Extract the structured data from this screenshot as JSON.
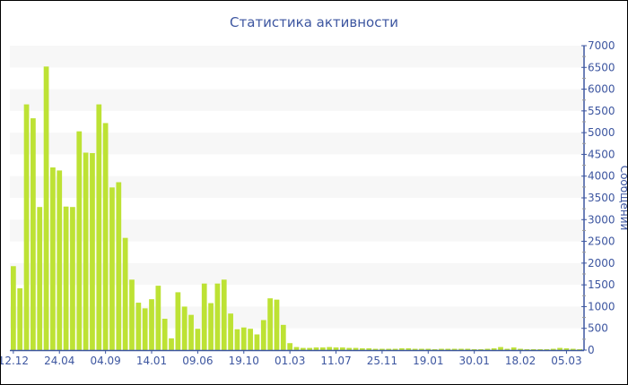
{
  "chart_data": {
    "type": "bar",
    "title": "Статистика активности",
    "ylabel": "Сообщений",
    "xlabel": "",
    "ylim": [
      0,
      7000
    ],
    "y_ticks": [
      0,
      500,
      1000,
      1500,
      2000,
      2500,
      3000,
      3500,
      4000,
      4500,
      5000,
      5500,
      6000,
      6500,
      7000
    ],
    "y_axis_side": "right",
    "x_tick_labels": [
      "12.12",
      "24.04",
      "04.09",
      "14.01",
      "09.06",
      "19.10",
      "01.03",
      "11.07",
      "25.11",
      "19.01",
      "30.01",
      "18.02",
      "05.03"
    ],
    "x_tick_every_n_bars": 7,
    "grid": "alternating horizontal bands",
    "bar_color": "#bde234",
    "axis_color": "#3d56a0",
    "band_color": "#f7f7f7",
    "values": [
      1930,
      1420,
      5650,
      5330,
      3290,
      6520,
      4200,
      4130,
      3300,
      3290,
      5030,
      4540,
      4530,
      5650,
      5220,
      3740,
      3860,
      2580,
      1620,
      1090,
      960,
      1170,
      1480,
      720,
      270,
      1330,
      1000,
      810,
      490,
      1530,
      1080,
      1530,
      1620,
      840,
      480,
      520,
      490,
      360,
      690,
      1190,
      1160,
      580,
      160,
      70,
      50,
      50,
      60,
      60,
      70,
      60,
      60,
      50,
      50,
      40,
      40,
      30,
      30,
      30,
      30,
      40,
      40,
      30,
      30,
      30,
      20,
      30,
      30,
      30,
      30,
      30,
      20,
      20,
      30,
      40,
      70,
      30,
      60,
      30,
      20,
      20,
      20,
      20,
      30,
      50,
      40,
      30,
      20
    ]
  }
}
